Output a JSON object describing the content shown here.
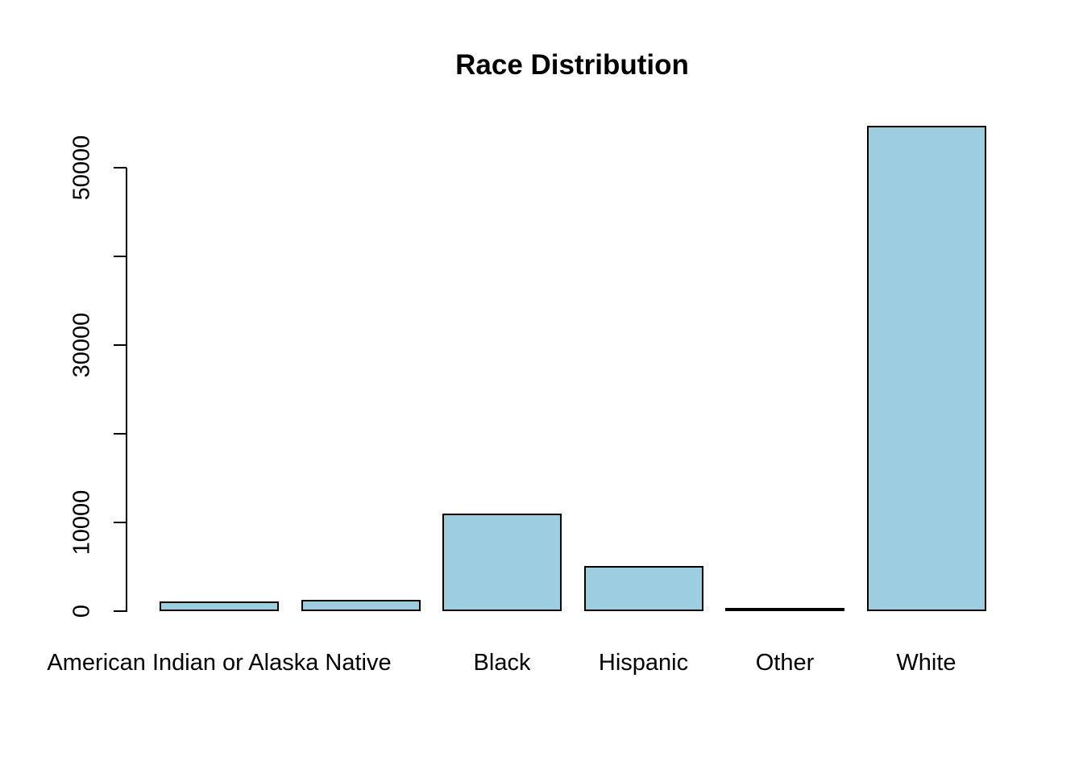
{
  "chart_data": {
    "type": "bar",
    "title": "Race Distribution",
    "categories": [
      "American Indian or Alaska Native",
      "",
      "Black",
      "Hispanic",
      "Other",
      "White"
    ],
    "values": [
      1100,
      1250,
      11000,
      5100,
      250,
      54700
    ],
    "xlabel": "",
    "ylabel": "",
    "ylim": [
      0,
      55000
    ],
    "yticks": [
      0,
      10000,
      20000,
      30000,
      40000,
      50000
    ],
    "ytick_labels": [
      "0",
      "10000",
      "",
      "30000",
      "",
      "50000"
    ],
    "grid": false,
    "legend": null,
    "bar_fill_color": "#9CCEE0",
    "bar_border_color": "#000000",
    "text_color": "#000000",
    "background_color": "#ffffff"
  }
}
